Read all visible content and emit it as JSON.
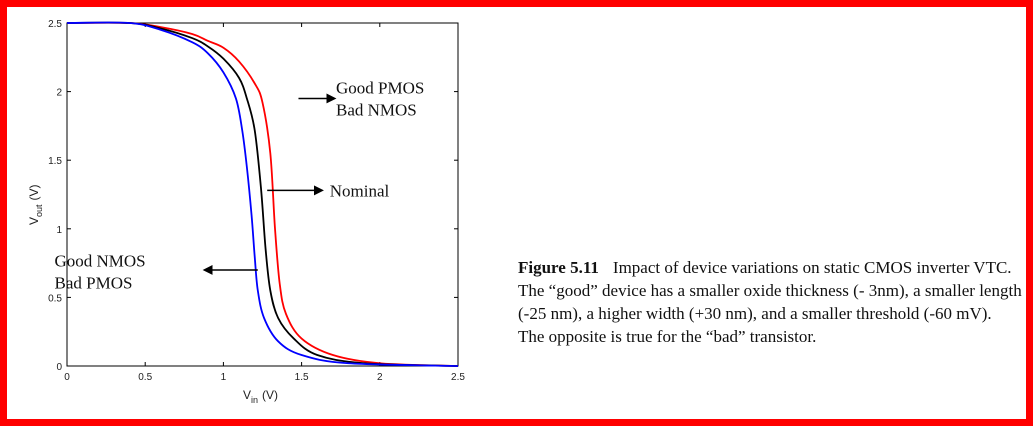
{
  "chart_data": {
    "type": "line",
    "xlabel_main": "V",
    "xlabel_sub": "in",
    "xlabel_unit": "(V)",
    "ylabel_main": "V",
    "ylabel_sub": "out",
    "ylabel_unit": "(V)",
    "xlim": [
      0,
      2.5
    ],
    "ylim": [
      0,
      2.5
    ],
    "xticks": [
      "0",
      "0.5",
      "1",
      "1.5",
      "2",
      "2.5"
    ],
    "yticks": [
      "0",
      "0.5",
      "1",
      "1.5",
      "2",
      "2.5"
    ],
    "grid": false,
    "series": [
      {
        "color": "#ff0000",
        "x": [
          0,
          0.4,
          0.6,
          0.8,
          0.9,
          1.0,
          1.1,
          1.2,
          1.25,
          1.3,
          1.33,
          1.36,
          1.4,
          1.5,
          1.7,
          2.0,
          2.5
        ],
        "y": [
          2.5,
          2.5,
          2.47,
          2.42,
          2.37,
          2.32,
          2.22,
          2.06,
          1.92,
          1.55,
          1.0,
          0.6,
          0.38,
          0.2,
          0.08,
          0.02,
          0
        ]
      },
      {
        "color": "#000000",
        "x": [
          0,
          0.4,
          0.6,
          0.8,
          0.9,
          1.0,
          1.1,
          1.15,
          1.2,
          1.24,
          1.27,
          1.3,
          1.35,
          1.45,
          1.6,
          1.9,
          2.5
        ],
        "y": [
          2.5,
          2.5,
          2.46,
          2.39,
          2.33,
          2.24,
          2.1,
          1.95,
          1.72,
          1.3,
          0.85,
          0.55,
          0.35,
          0.2,
          0.08,
          0.02,
          0
        ]
      },
      {
        "color": "#0000ff",
        "x": [
          0,
          0.4,
          0.6,
          0.8,
          0.9,
          1.0,
          1.08,
          1.12,
          1.15,
          1.18,
          1.2,
          1.22,
          1.26,
          1.35,
          1.5,
          1.8,
          2.5
        ],
        "y": [
          2.5,
          2.5,
          2.45,
          2.36,
          2.28,
          2.14,
          1.95,
          1.72,
          1.45,
          1.1,
          0.8,
          0.55,
          0.35,
          0.18,
          0.08,
          0.02,
          0
        ]
      }
    ],
    "annotations": [
      {
        "lines": [
          "Good PMOS",
          "Bad NMOS"
        ],
        "arrow_from": [
          1.48,
          1.95
        ],
        "arrow_to": [
          1.71,
          1.95
        ],
        "text_at": [
          1.72,
          2.03
        ]
      },
      {
        "lines": [
          "Nominal"
        ],
        "arrow_from": [
          1.28,
          1.28
        ],
        "arrow_to": [
          1.63,
          1.28
        ],
        "text_at": [
          1.68,
          1.28
        ]
      },
      {
        "lines": [
          "Good NMOS",
          "Bad PMOS"
        ],
        "arrow_from": [
          1.22,
          0.7
        ],
        "arrow_to": [
          0.88,
          0.7
        ],
        "text_at": [
          -0.08,
          0.77
        ]
      }
    ]
  },
  "caption": {
    "figure_label": "Figure 5.11",
    "text": "Impact of device variations on static CMOS inverter VTC. The “good” device has a smaller oxide thickness (- 3nm), a smaller length (-25 nm), a higher width (+30 nm), and a smaller threshold (-60 mV). The opposite is true for the “bad” transistor."
  }
}
